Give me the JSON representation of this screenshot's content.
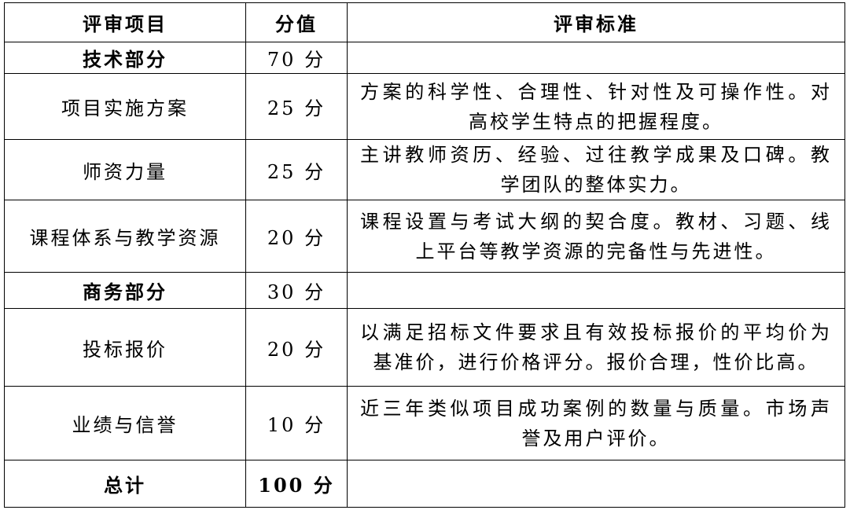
{
  "header": {
    "item": "评审项目",
    "score": "分值",
    "criteria": "评审标准"
  },
  "rows": [
    {
      "item": "技术部分",
      "score": "70 分",
      "criteria": [],
      "bold": true
    },
    {
      "item": "项目实施方案",
      "score": "25 分",
      "criteria": [
        "方案的科学性、合理性、针对性及可操作性。对",
        "高校学生特点的把握程度。"
      ]
    },
    {
      "item": "师资力量",
      "score": "25 分",
      "criteria": [
        "主讲教师资历、经验、过往教学成果及口碑。教",
        "学团队的整体实力。"
      ]
    },
    {
      "item": "课程体系与教学资源",
      "score": "20 分",
      "criteria": [
        "课程设置与考试大纲的契合度。教材、习题、线",
        "上平台等教学资源的完备性与先进性。"
      ]
    },
    {
      "item": "商务部分",
      "score": "30 分",
      "criteria": [],
      "bold": true
    },
    {
      "item": "投标报价",
      "score": "20 分",
      "criteria": [
        "以满足招标文件要求且有效投标报价的平均价为",
        "基准价，进行价格评分。报价合理，性价比高。"
      ]
    },
    {
      "item": "业绩与信誉",
      "score": "10 分",
      "criteria": [
        "近三年类似项目成功案例的数量与质量。市场声",
        "誉及用户评价。"
      ]
    }
  ],
  "total": {
    "item": "总计",
    "score": "100 分"
  }
}
